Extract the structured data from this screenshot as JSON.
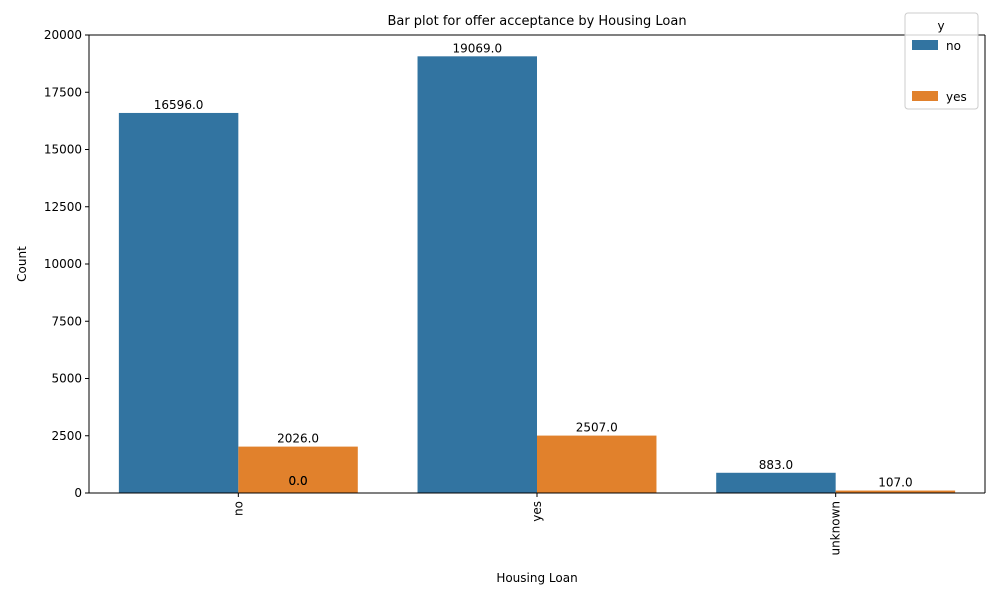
{
  "chart_data": {
    "type": "bar",
    "title": "Bar plot for offer acceptance by Housing Loan",
    "xlabel": "Housing Loan",
    "ylabel": "Count",
    "categories": [
      "no",
      "yes",
      "unknown"
    ],
    "series": [
      {
        "name": "no",
        "values": [
          16596,
          19069,
          883
        ],
        "color": "#3274a1"
      },
      {
        "name": "yes",
        "values": [
          2026,
          2507,
          107
        ],
        "color": "#e1812c"
      }
    ],
    "data_labels": [
      [
        "16596.0",
        "19069.0",
        "883.0"
      ],
      [
        "2026.0",
        "2507.0",
        "107.0"
      ]
    ],
    "extra_labels": [
      "0.0",
      "0.0"
    ],
    "ylim": [
      0,
      20000
    ],
    "yticks": [
      0,
      2500,
      5000,
      7500,
      10000,
      12500,
      15000,
      17500,
      20000
    ],
    "grid": false,
    "legend": {
      "title": "y",
      "placement": "top-right"
    }
  }
}
